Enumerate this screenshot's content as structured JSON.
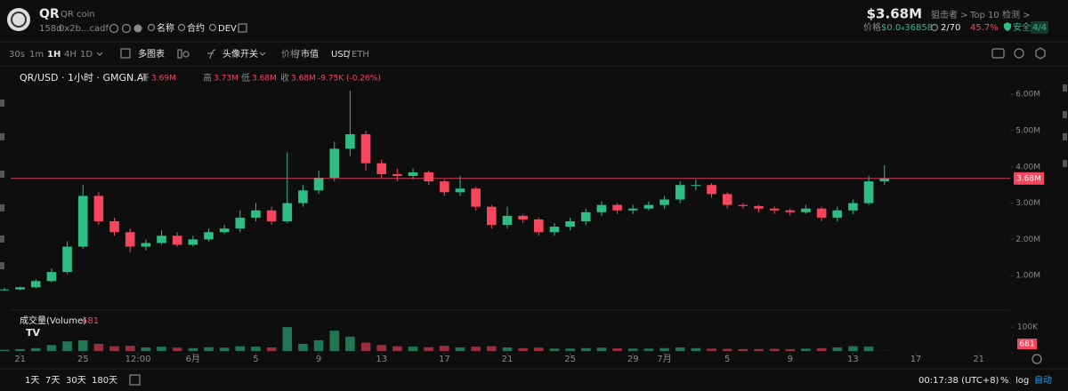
{
  "header": {
    "symbol": "QR",
    "name": "QR coin",
    "age": "158d",
    "address": "0x2b...cadf",
    "links": [
      "名称",
      "合约",
      "DEV"
    ],
    "market_cap": "$3.68M",
    "price_label": "价格",
    "price": "$0.0₄36858",
    "snipers_label": "狙击者 >",
    "snipers": "2/70",
    "top10_label": "Top 10",
    "top10": "45.7%",
    "check_label": "检测 >",
    "check_status": "安全",
    "check_score": "4/4"
  },
  "toolbar": {
    "intervals": [
      "30s",
      "1m",
      "1H",
      "4H",
      "1D"
    ],
    "multi_chart": "多图表",
    "avatar_toggle": "头像开关",
    "price": "价格",
    "market_cap": "市值",
    "usd": "USD",
    "eth": "ETH"
  },
  "legend": {
    "pair": "QR/USD · 1小时 · GMGN.AI",
    "open_label": "开",
    "open": "3.69M",
    "high_label": "高",
    "high": "3.73M",
    "low_label": "低",
    "low": "3.68M",
    "close_label": "收",
    "close": "3.68M",
    "change": "-9.75K (-0.26%)"
  },
  "chart_data": {
    "type": "candlestick",
    "x": [
      -1,
      0,
      1,
      2,
      3,
      4,
      5,
      6,
      7,
      8,
      9,
      10,
      11,
      12,
      13,
      14,
      15,
      16,
      17,
      18,
      19,
      20,
      21,
      22,
      23,
      24,
      25,
      26,
      27,
      28,
      29,
      30,
      31,
      32,
      33,
      34,
      35,
      36,
      37,
      38,
      39,
      40,
      41,
      42,
      43,
      44,
      45,
      46,
      47,
      48,
      49,
      50,
      51,
      52,
      53,
      54,
      55
    ],
    "open": [
      0.6,
      0.62,
      0.68,
      0.85,
      1.1,
      1.8,
      3.2,
      2.5,
      2.2,
      1.8,
      1.9,
      2.1,
      1.85,
      2.0,
      2.2,
      2.3,
      2.6,
      2.8,
      2.5,
      3.0,
      3.35,
      3.7,
      4.5,
      4.9,
      4.1,
      3.8,
      3.75,
      3.85,
      3.6,
      3.3,
      3.4,
      2.9,
      2.4,
      2.65,
      2.55,
      2.2,
      2.35,
      2.5,
      2.75,
      2.95,
      2.8,
      2.85,
      2.95,
      3.1,
      3.5,
      3.5,
      3.25,
      2.95,
      2.92,
      2.85,
      2.8,
      2.75,
      2.85,
      2.6,
      2.8,
      3.0,
      3.6
    ],
    "high": [
      0.66,
      0.7,
      0.9,
      1.2,
      1.95,
      3.5,
      3.3,
      2.6,
      2.3,
      2.0,
      2.25,
      2.2,
      2.1,
      2.3,
      2.4,
      2.8,
      3.0,
      2.9,
      4.4,
      3.5,
      3.9,
      4.7,
      6.1,
      5.0,
      4.2,
      3.95,
      3.95,
      3.9,
      3.65,
      3.75,
      3.45,
      2.95,
      2.9,
      2.7,
      2.6,
      2.45,
      2.6,
      2.85,
      3.05,
      3.0,
      2.95,
      3.05,
      3.2,
      3.6,
      3.65,
      3.55,
      3.3,
      3.0,
      2.95,
      2.9,
      2.85,
      2.95,
      2.9,
      2.9,
      3.1,
      3.75,
      4.05
    ],
    "low": [
      0.58,
      0.6,
      0.65,
      0.82,
      1.05,
      1.75,
      2.4,
      2.1,
      1.65,
      1.7,
      1.85,
      1.8,
      1.8,
      1.95,
      2.15,
      2.2,
      2.5,
      2.4,
      2.45,
      2.9,
      3.25,
      3.6,
      4.3,
      3.9,
      3.7,
      3.6,
      3.65,
      3.5,
      3.2,
      3.2,
      2.8,
      2.3,
      2.3,
      2.45,
      2.1,
      2.1,
      2.25,
      2.4,
      2.65,
      2.7,
      2.7,
      2.8,
      2.85,
      3.0,
      3.35,
      3.15,
      2.85,
      2.85,
      2.75,
      2.7,
      2.65,
      2.7,
      2.5,
      2.5,
      2.7,
      2.95,
      3.5
    ],
    "close": [
      0.62,
      0.68,
      0.85,
      1.1,
      1.8,
      3.2,
      2.5,
      2.2,
      1.8,
      1.9,
      2.1,
      1.85,
      2.0,
      2.2,
      2.3,
      2.6,
      2.8,
      2.5,
      3.0,
      3.35,
      3.7,
      4.5,
      4.9,
      4.1,
      3.8,
      3.75,
      3.85,
      3.6,
      3.3,
      3.4,
      2.9,
      2.4,
      2.65,
      2.55,
      2.2,
      2.35,
      2.5,
      2.75,
      2.95,
      2.8,
      2.85,
      2.95,
      3.1,
      3.5,
      3.5,
      3.25,
      2.95,
      2.92,
      2.85,
      2.8,
      2.75,
      2.85,
      2.6,
      2.8,
      3.0,
      3.6,
      3.68
    ],
    "colors": {
      "up": "#2ebd85",
      "down": "#f6465d"
    },
    "xlim": [
      -0.6,
      63
    ],
    "xticks": [
      {
        "value": 0,
        "label": "21"
      },
      {
        "value": 4,
        "label": "25"
      },
      {
        "value": 7.5,
        "label": "12:00"
      },
      {
        "value": 11,
        "label": "6月"
      },
      {
        "value": 15,
        "label": "5"
      },
      {
        "value": 19,
        "label": "9"
      },
      {
        "value": 23,
        "label": "13"
      },
      {
        "value": 27,
        "label": "17"
      },
      {
        "value": 31,
        "label": "21"
      },
      {
        "value": 35,
        "label": "25"
      },
      {
        "value": 39,
        "label": "29"
      },
      {
        "value": 41,
        "label": "7月"
      },
      {
        "value": 45,
        "label": "5"
      },
      {
        "value": 49,
        "label": "9"
      },
      {
        "value": 53,
        "label": "13"
      },
      {
        "value": 57,
        "label": "17"
      },
      {
        "value": 61,
        "label": "21"
      }
    ],
    "ylim": [
      0,
      6.2
    ],
    "yticks": [
      {
        "value": 1,
        "label": "1.00M"
      },
      {
        "value": 2,
        "label": "2.00M"
      },
      {
        "value": 3,
        "label": "3.00M"
      },
      {
        "value": 4,
        "label": "4.00M"
      },
      {
        "value": 5,
        "label": "5.00M"
      },
      {
        "value": 6,
        "label": "6.00M"
      }
    ],
    "log_scale": false,
    "price_line": {
      "value": 3.68,
      "label": "3.68M"
    },
    "volume": {
      "title": "成交量(Volume)",
      "values": [
        5000,
        8000,
        12000,
        25000,
        40000,
        45000,
        30000,
        20000,
        22000,
        15000,
        18000,
        14000,
        12000,
        16000,
        14000,
        20000,
        18000,
        15000,
        100000,
        30000,
        45000,
        85000,
        60000,
        35000,
        25000,
        20000,
        18000,
        16000,
        22000,
        15000,
        18000,
        20000,
        15000,
        12000,
        14000,
        10000,
        10000,
        12000,
        14000,
        11000,
        10000,
        10000,
        12000,
        15000,
        12000,
        10000,
        9000,
        8000,
        8000,
        9000,
        8000,
        10000,
        12000,
        15000,
        20000,
        18000,
        681
      ],
      "ylim": [
        0,
        160000
      ],
      "yticks": [
        {
          "value": 100000,
          "label": "100K"
        }
      ]
    }
  },
  "footer": {
    "ranges": [
      "1天",
      "7天",
      "30天",
      "180天"
    ],
    "clock": "00:17:38 (UTC+8)",
    "percent": "%",
    "log": "log",
    "auto": "自动"
  }
}
